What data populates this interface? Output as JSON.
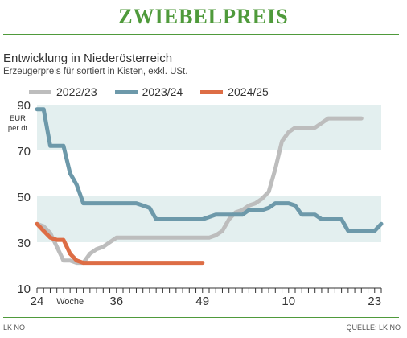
{
  "header": {
    "title": "ZWIEBELPREIS",
    "subtitle": "Entwicklung in Niederösterreich",
    "note": "Erzeugerpreis für sortiert in Kisten, exkl. USt."
  },
  "footer": {
    "left": "LK NÖ",
    "right": "QUELLE: LK NÖ"
  },
  "colors": {
    "green": "#4f9a3b",
    "band": "#e3efef",
    "grey": "#bdbdbd",
    "blue": "#6d99aa",
    "orange": "#dd6d45"
  },
  "chart_data": {
    "type": "line",
    "ylabel": "EUR per dt",
    "xlabel": "Woche",
    "ylim": [
      10,
      90
    ],
    "yticks": [
      10,
      30,
      50,
      70,
      90
    ],
    "xticks": [
      "24",
      "36",
      "49",
      "10",
      "23"
    ],
    "xtick_positions": [
      0,
      12,
      25,
      38,
      51
    ],
    "x_unit_note": "x = weeks since calendar week 24 (24 → 0, 36 → 12, 49 → 25, 10 → 38, 23 → 51)",
    "grid": "horizontal shaded bands 30–50 and 70–90",
    "legend_position": "top",
    "series": [
      {
        "name": "2022/23",
        "color": "#bdbdbd",
        "points": [
          [
            0,
            38
          ],
          [
            1,
            37
          ],
          [
            2,
            34
          ],
          [
            3,
            28
          ],
          [
            4,
            22
          ],
          [
            5,
            22
          ],
          [
            6,
            21
          ],
          [
            7,
            21
          ],
          [
            8,
            25
          ],
          [
            9,
            27
          ],
          [
            10,
            28
          ],
          [
            11,
            30
          ],
          [
            12,
            32
          ],
          [
            13,
            32
          ],
          [
            14,
            32
          ],
          [
            15,
            32
          ],
          [
            16,
            32
          ],
          [
            17,
            32
          ],
          [
            18,
            32
          ],
          [
            19,
            32
          ],
          [
            20,
            32
          ],
          [
            21,
            32
          ],
          [
            22,
            32
          ],
          [
            23,
            32
          ],
          [
            24,
            32
          ],
          [
            25,
            32
          ],
          [
            26,
            32
          ],
          [
            27,
            33
          ],
          [
            28,
            35
          ],
          [
            29,
            40
          ],
          [
            30,
            43
          ],
          [
            31,
            44
          ],
          [
            32,
            46
          ],
          [
            33,
            47
          ],
          [
            34,
            49
          ],
          [
            35,
            52
          ],
          [
            36,
            62
          ],
          [
            37,
            74
          ],
          [
            38,
            78
          ],
          [
            39,
            80
          ],
          [
            40,
            80
          ],
          [
            41,
            80
          ],
          [
            42,
            80
          ],
          [
            43,
            82
          ],
          [
            44,
            84
          ],
          [
            45,
            84
          ],
          [
            46,
            84
          ],
          [
            47,
            84
          ],
          [
            48,
            84
          ],
          [
            49,
            84
          ]
        ]
      },
      {
        "name": "2023/24",
        "color": "#6d99aa",
        "points": [
          [
            0,
            88
          ],
          [
            1,
            88
          ],
          [
            2,
            72
          ],
          [
            3,
            72
          ],
          [
            4,
            72
          ],
          [
            5,
            60
          ],
          [
            6,
            55
          ],
          [
            7,
            47
          ],
          [
            8,
            47
          ],
          [
            9,
            47
          ],
          [
            10,
            47
          ],
          [
            11,
            47
          ],
          [
            12,
            47
          ],
          [
            13,
            47
          ],
          [
            14,
            47
          ],
          [
            15,
            47
          ],
          [
            16,
            46
          ],
          [
            17,
            45
          ],
          [
            18,
            40
          ],
          [
            19,
            40
          ],
          [
            20,
            40
          ],
          [
            21,
            40
          ],
          [
            22,
            40
          ],
          [
            23,
            40
          ],
          [
            24,
            40
          ],
          [
            25,
            40
          ],
          [
            26,
            41
          ],
          [
            27,
            42
          ],
          [
            28,
            42
          ],
          [
            29,
            42
          ],
          [
            30,
            42
          ],
          [
            31,
            42
          ],
          [
            32,
            44
          ],
          [
            33,
            44
          ],
          [
            34,
            44
          ],
          [
            35,
            45
          ],
          [
            36,
            47
          ],
          [
            37,
            47
          ],
          [
            38,
            47
          ],
          [
            39,
            46
          ],
          [
            40,
            42
          ],
          [
            41,
            42
          ],
          [
            42,
            42
          ],
          [
            43,
            40
          ],
          [
            44,
            40
          ],
          [
            45,
            40
          ],
          [
            46,
            40
          ],
          [
            47,
            35
          ],
          [
            48,
            35
          ],
          [
            49,
            35
          ],
          [
            50,
            35
          ],
          [
            51,
            35
          ],
          [
            52,
            38
          ]
        ]
      },
      {
        "name": "2024/25",
        "color": "#dd6d45",
        "points": [
          [
            0,
            38
          ],
          [
            1,
            35
          ],
          [
            2,
            32
          ],
          [
            3,
            31
          ],
          [
            4,
            31
          ],
          [
            5,
            25
          ],
          [
            6,
            22
          ],
          [
            7,
            21
          ],
          [
            8,
            21
          ],
          [
            9,
            21
          ],
          [
            10,
            21
          ],
          [
            11,
            21
          ],
          [
            12,
            21
          ],
          [
            13,
            21
          ],
          [
            14,
            21
          ],
          [
            15,
            21
          ],
          [
            16,
            21
          ],
          [
            17,
            21
          ],
          [
            18,
            21
          ],
          [
            19,
            21
          ],
          [
            20,
            21
          ],
          [
            21,
            21
          ],
          [
            22,
            21
          ],
          [
            23,
            21
          ],
          [
            24,
            21
          ],
          [
            25,
            21
          ]
        ]
      }
    ]
  }
}
